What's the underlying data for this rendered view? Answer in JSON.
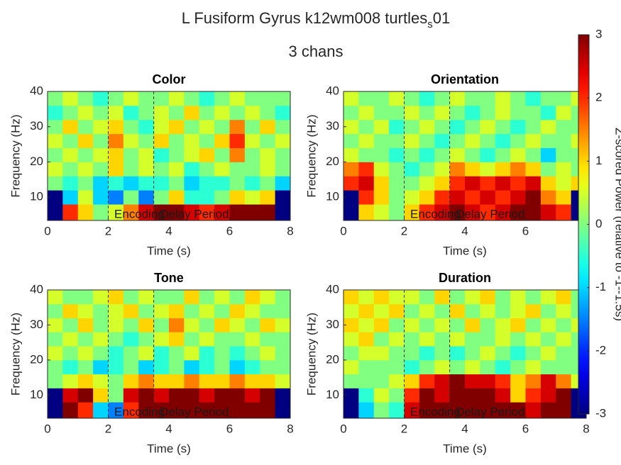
{
  "figure": {
    "title": [
      "L Fusiform Gyrus k12wm008 turtles",
      "s",
      "01"
    ],
    "subtitle": "3 chans",
    "colorbar": {
      "clim": [
        -3,
        3
      ],
      "ticks": [
        -3,
        -2,
        -1,
        0,
        1,
        2,
        3
      ],
      "label": "Z-scored Power (relative to -1--1.5s)",
      "colormap": "jet"
    }
  },
  "chart_data": [
    {
      "type": "heatmap",
      "title": "Color",
      "xlabel": "Time (s)",
      "ylabel": "Frequency (Hz)",
      "xlim": [
        0,
        8
      ],
      "xticks": [
        0,
        2,
        4,
        6,
        8
      ],
      "ylim": [
        3.4,
        40
      ],
      "yticks": [
        10,
        20,
        30,
        40
      ],
      "x_edges": [
        0,
        0.5,
        1,
        1.5,
        2,
        2.5,
        3,
        3.5,
        4,
        4.5,
        5,
        5.5,
        6,
        6.5,
        7,
        7.5,
        8
      ],
      "y_edges": [
        3.4,
        8,
        12,
        16,
        20,
        24,
        28,
        32,
        36,
        40
      ],
      "values": [
        [
          -3,
          2,
          1,
          0,
          0.5,
          1.5,
          2.5,
          3,
          3,
          2.5,
          2,
          2.5,
          3,
          3,
          3,
          -3
        ],
        [
          -3,
          -1,
          0.5,
          -1,
          -1.5,
          0,
          -1.5,
          0,
          1,
          -0.5,
          -0.5,
          0,
          1,
          0.5,
          1,
          -3
        ],
        [
          0,
          -0.5,
          0,
          -1,
          -0.5,
          -1,
          -0.5,
          -0.5,
          0,
          -1,
          -0.5,
          -0.5,
          0,
          -0.5,
          0,
          -1
        ],
        [
          0.5,
          0,
          0.5,
          0,
          1,
          0,
          0.5,
          0,
          0.5,
          -0.5,
          0,
          0.5,
          0,
          0,
          0.5,
          0
        ],
        [
          0,
          0.5,
          0,
          0.5,
          1,
          0,
          0.5,
          -0.5,
          0,
          0.5,
          1,
          0,
          1.5,
          0,
          0.5,
          0
        ],
        [
          0.5,
          0,
          1,
          0,
          1.5,
          0.5,
          0,
          1,
          0,
          0.5,
          0,
          1,
          2,
          0.5,
          0,
          0.5
        ],
        [
          0,
          1,
          0,
          0.5,
          1,
          0,
          -0.5,
          0.5,
          1,
          0,
          0.5,
          0,
          1.5,
          0,
          1,
          0
        ],
        [
          -0.5,
          0,
          0.5,
          0,
          0.5,
          -0.5,
          0,
          0.5,
          0,
          1,
          0,
          0.5,
          0,
          0.5,
          0,
          -0.5
        ],
        [
          0,
          0.5,
          0,
          -0.5,
          0,
          0.5,
          0,
          0,
          0.5,
          0,
          -0.5,
          0,
          0.5,
          0,
          0,
          0
        ]
      ],
      "event_lines": [
        2,
        3.5
      ],
      "annotations": [
        {
          "text": "Encoding",
          "x": 2.2,
          "y": 5
        },
        {
          "text": "Delay Period",
          "x": 3.7,
          "y": 5
        }
      ]
    },
    {
      "type": "heatmap",
      "title": "Orientation",
      "xlabel": "Time (s)",
      "ylabel": "Frequency (Hz)",
      "xlim": [
        0,
        8
      ],
      "xticks": [
        0,
        2,
        4,
        6,
        8
      ],
      "ylim": [
        3.4,
        40
      ],
      "yticks": [
        10,
        20,
        30,
        40
      ],
      "x_edges": [
        0,
        0.5,
        1,
        1.5,
        2,
        2.5,
        3,
        3.5,
        4,
        4.5,
        5,
        5.5,
        6,
        6.5,
        7,
        7.5,
        8
      ],
      "y_edges": [
        3.4,
        8,
        12,
        16,
        20,
        24,
        28,
        32,
        36,
        40
      ],
      "values": [
        [
          -3,
          1,
          0.5,
          0,
          1,
          2,
          2.5,
          3,
          2.5,
          2,
          2.5,
          3,
          3,
          2.5,
          2,
          -3
        ],
        [
          -3,
          2,
          1,
          0,
          0.5,
          1,
          2,
          2.5,
          2,
          2.5,
          2,
          2.5,
          3,
          1.5,
          1,
          -3
        ],
        [
          2,
          2.5,
          1,
          0,
          0,
          0.5,
          1,
          2,
          2.5,
          2,
          2.5,
          2,
          2.5,
          1,
          0.5,
          1
        ],
        [
          1.5,
          2,
          0.5,
          0,
          -0.5,
          0,
          0.5,
          1.5,
          1,
          0.5,
          1,
          1.5,
          1,
          0,
          0.5,
          0
        ],
        [
          0.5,
          0,
          0,
          -0.5,
          0,
          -0.5,
          0,
          0.5,
          0,
          -0.5,
          0,
          0.5,
          0,
          -1,
          0,
          0
        ],
        [
          0,
          0.5,
          0,
          0,
          0.5,
          0,
          -0.5,
          0,
          0.5,
          0,
          -0.5,
          0,
          0.5,
          0,
          0,
          0.5
        ],
        [
          0.5,
          0,
          0.5,
          -0.5,
          0,
          0.5,
          0,
          -0.5,
          0,
          0.5,
          0,
          -0.5,
          0,
          0.5,
          0,
          0
        ],
        [
          0,
          0.5,
          0,
          0,
          0.5,
          0,
          0.5,
          0,
          -0.5,
          0,
          0.5,
          0,
          0,
          -0.5,
          0.5,
          0
        ],
        [
          0.5,
          0,
          0,
          0.5,
          0,
          -0.5,
          0,
          0.5,
          0,
          0,
          0.5,
          0,
          -0.5,
          0,
          0,
          0.5
        ]
      ],
      "event_lines": [
        2,
        3.5
      ],
      "annotations": [
        {
          "text": "Encoding",
          "x": 2.2,
          "y": 5
        },
        {
          "text": "Delay Period",
          "x": 3.7,
          "y": 5
        }
      ]
    },
    {
      "type": "heatmap",
      "title": "Tone",
      "xlabel": "Time (s)",
      "ylabel": "Frequency (Hz)",
      "xlim": [
        0,
        8
      ],
      "xticks": [
        0,
        2,
        4,
        6,
        8
      ],
      "ylim": [
        3.4,
        40
      ],
      "yticks": [
        10,
        20,
        30,
        40
      ],
      "x_edges": [
        0,
        0.5,
        1,
        1.5,
        2,
        2.5,
        3,
        3.5,
        4,
        4.5,
        5,
        5.5,
        6,
        6.5,
        7,
        7.5,
        8
      ],
      "y_edges": [
        3.4,
        8,
        12,
        16,
        20,
        24,
        28,
        32,
        36,
        40
      ],
      "values": [
        [
          -3,
          3,
          2,
          -1,
          -1.5,
          2,
          3,
          3,
          3,
          3,
          3,
          3,
          3,
          3,
          3,
          -3
        ],
        [
          -3,
          2.5,
          3,
          1,
          0,
          2.5,
          3,
          2.5,
          3,
          3,
          2.5,
          3,
          3,
          2.5,
          3,
          -3
        ],
        [
          0,
          0.5,
          1,
          0.5,
          0,
          1,
          1.5,
          1,
          1,
          1.5,
          1,
          1,
          1.5,
          1,
          1,
          0.5
        ],
        [
          0,
          -0.5,
          0,
          -1,
          -0.5,
          0,
          -1,
          -0.5,
          0,
          -1,
          -0.5,
          0,
          -1,
          -0.5,
          0,
          0
        ],
        [
          0.5,
          0,
          0.5,
          0,
          -0.5,
          0,
          0.5,
          -0.5,
          0,
          0.5,
          -0.5,
          0,
          -0.5,
          0,
          0.5,
          0
        ],
        [
          0,
          0.5,
          0,
          0.5,
          0,
          -0.5,
          0,
          0.5,
          1,
          0,
          0.5,
          0,
          0,
          0.5,
          0,
          0
        ],
        [
          0.5,
          0,
          1,
          0,
          0.5,
          0,
          1,
          0,
          1.5,
          0.5,
          0,
          1,
          0.5,
          0,
          1,
          0.5
        ],
        [
          0,
          1,
          0.5,
          0,
          0.5,
          1,
          0,
          0.5,
          1,
          0,
          0.5,
          0,
          1,
          0.5,
          0,
          0
        ],
        [
          0.5,
          0,
          0,
          0.5,
          1,
          0,
          0.5,
          0,
          0,
          1,
          0,
          0.5,
          0,
          1,
          0.5,
          0
        ]
      ],
      "event_lines": [
        2,
        3.5
      ],
      "annotations": [
        {
          "text": "Encoding",
          "x": 2.2,
          "y": 5
        },
        {
          "text": "Delay Period",
          "x": 3.7,
          "y": 5
        }
      ]
    },
    {
      "type": "heatmap",
      "title": "Duration",
      "xlabel": "Time (s)",
      "ylabel": "Frequency (Hz)",
      "xlim": [
        0,
        8
      ],
      "xticks": [
        0,
        2,
        4,
        6,
        8
      ],
      "ylim": [
        3.4,
        40
      ],
      "yticks": [
        10,
        20,
        30,
        40
      ],
      "x_edges": [
        0,
        0.5,
        1,
        1.5,
        2,
        2.5,
        3,
        3.5,
        4,
        4.5,
        5,
        5.5,
        6,
        6.5,
        7,
        7.5,
        8
      ],
      "y_edges": [
        3.4,
        8,
        12,
        16,
        20,
        24,
        28,
        32,
        36,
        40
      ],
      "values": [
        [
          -3,
          -1,
          0,
          -0.5,
          2.5,
          3,
          3,
          3,
          3,
          3,
          3,
          3,
          2.5,
          3,
          3,
          -3
        ],
        [
          -3,
          -0.5,
          0.5,
          0,
          2,
          3,
          2.5,
          3,
          3,
          3,
          2.5,
          1,
          2,
          2.5,
          3,
          -3
        ],
        [
          0,
          0,
          0,
          0.5,
          1,
          2,
          2.5,
          3,
          2.5,
          2.5,
          2,
          1,
          1.5,
          2.5,
          1.5,
          0.5
        ],
        [
          0.5,
          0,
          0,
          0,
          -0.5,
          0,
          0.5,
          0,
          0.5,
          0,
          -0.5,
          0,
          0.5,
          0,
          0,
          0
        ],
        [
          0,
          0.5,
          0.5,
          0,
          0,
          -0.5,
          0,
          -0.5,
          0,
          0.5,
          0,
          -0.5,
          0,
          0.5,
          0,
          0
        ],
        [
          0.5,
          1,
          0,
          0.5,
          0,
          0.5,
          0,
          0.5,
          0,
          0,
          0.5,
          0,
          0.5,
          0,
          0.5,
          0
        ],
        [
          1,
          0.5,
          1,
          0,
          0.5,
          0,
          0.5,
          0,
          1,
          0,
          0.5,
          1,
          0,
          0.5,
          0,
          0.5
        ],
        [
          0.5,
          1,
          0.5,
          1,
          0,
          0.5,
          0,
          1,
          0,
          0.5,
          0,
          0.5,
          1,
          0,
          0.5,
          0
        ],
        [
          1,
          0.5,
          1,
          0.5,
          0.5,
          0,
          1,
          0,
          0.5,
          1,
          0,
          0.5,
          0,
          0.5,
          1,
          0
        ]
      ],
      "event_lines": [
        2,
        3.5
      ],
      "annotations": [
        {
          "text": "Encoding",
          "x": 2.2,
          "y": 5
        },
        {
          "text": "Delay Period",
          "x": 3.7,
          "y": 5
        }
      ]
    }
  ]
}
